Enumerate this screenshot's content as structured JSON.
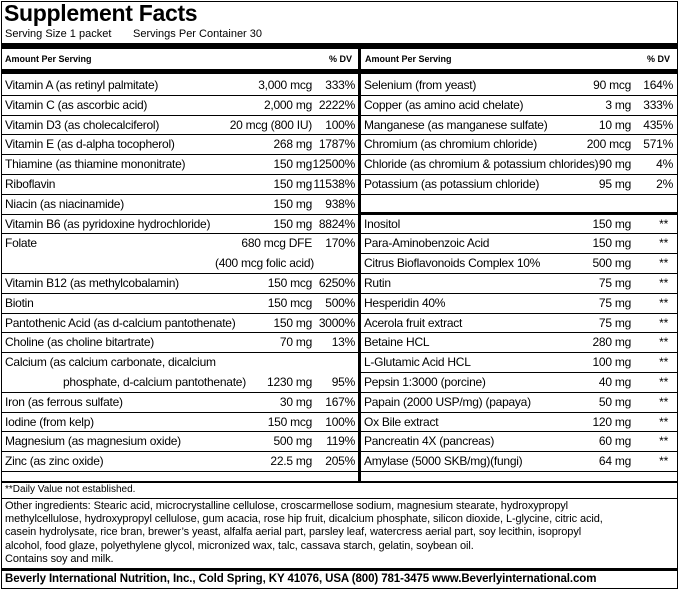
{
  "title": "Supplement Facts",
  "serving_size": "Serving Size 1 packet",
  "servings_per_container": "Servings Per Container 30",
  "left": {
    "header": [
      "Amount Per Serving",
      "% DV"
    ],
    "rows": [
      {
        "name": "Vitamin A (as retinyl palmitate)",
        "amount": "3,000 mcg",
        "dv": "333%"
      },
      {
        "name": "Vitamin C (as ascorbic acid)",
        "amount": "2,000 mg",
        "dv": "2222%"
      },
      {
        "name": "Vitamin D3 (as cholecalciferol)",
        "amount": "20 mcg (800 IU)",
        "dv": "100%"
      },
      {
        "name": "Vitamin E (as d-alpha tocopherol)",
        "amount": "268 mg",
        "dv": "1787%"
      },
      {
        "name": "Thiamine (as thiamine mononitrate)",
        "amount": "150 mg",
        "dv": "12500%"
      },
      {
        "name": "Riboflavin",
        "amount": "150 mg",
        "dv": "11538%"
      },
      {
        "name": "Niacin (as niacinamide)",
        "amount": "150 mg",
        "dv": "938%"
      },
      {
        "name": "Vitamin B6 (as pyridoxine hydrochloride)",
        "amount": "150 mg",
        "dv": "8824%"
      },
      {
        "name": "Folate",
        "amount": "680 mcg DFE",
        "dv": "170%",
        "amount_note": "(400 mcg folic acid)"
      },
      {
        "name": "Vitamin B12 (as methylcobalamin)",
        "amount": "150 mcg",
        "dv": "6250%"
      },
      {
        "name": "Biotin",
        "amount": "150 mcg",
        "dv": "500%"
      },
      {
        "name": "Pantothenic Acid (as d-calcium pantothenate)",
        "amount": "150 mg",
        "dv": "3000%"
      },
      {
        "name": "Choline (as choline bitartrate)",
        "amount": "70 mg",
        "dv": "13%"
      },
      {
        "name": "Calcium (as calcium carbonate, dicalcium",
        "name_cont": "phosphate, d-calcium pantothenate)",
        "amount": "1230 mg",
        "dv": "95%"
      },
      {
        "name": "Iron (as ferrous sulfate)",
        "amount": "30 mg",
        "dv": "167%"
      },
      {
        "name": "Iodine (from kelp)",
        "amount": "150 mcg",
        "dv": "100%"
      },
      {
        "name": "Magnesium (as magnesium oxide)",
        "amount": "500 mg",
        "dv": "119%"
      },
      {
        "name": "Zinc (as zinc oxide)",
        "amount": "22.5 mg",
        "dv": "205%"
      }
    ]
  },
  "right": {
    "header": [
      "Amount Per Serving",
      "% DV"
    ],
    "rows": [
      {
        "name": "Selenium (from yeast)",
        "amount": "90 mcg",
        "dv": "164%"
      },
      {
        "name": "Copper (as amino acid chelate)",
        "amount": "3 mg",
        "dv": "333%"
      },
      {
        "name": "Manganese (as manganese sulfate)",
        "amount": "10 mg",
        "dv": "435%"
      },
      {
        "name": "Chromium (as chromium chloride)",
        "amount": "200 mcg",
        "dv": "571%"
      },
      {
        "name": "Chloride (as chromium & potassium chlorides)",
        "amount": "90 mg",
        "dv": "4%"
      },
      {
        "name": "Potassium (as potassium chloride)",
        "amount": "95 mg",
        "dv": "2%"
      }
    ],
    "rows2": [
      {
        "name": "Inositol",
        "amount": "150 mg",
        "dv": "**"
      },
      {
        "name": "Para-Aminobenzoic Acid",
        "amount": "150 mg",
        "dv": "**"
      },
      {
        "name": "Citrus Bioflavonoids Complex 10%",
        "amount": "500 mg",
        "dv": "**"
      },
      {
        "name": "Rutin",
        "amount": "75 mg",
        "dv": "**"
      },
      {
        "name": "Hesperidin 40%",
        "amount": "75 mg",
        "dv": "**"
      },
      {
        "name": "Acerola fruit extract",
        "amount": "75 mg",
        "dv": "**"
      },
      {
        "name": "Betaine HCL",
        "amount": "280 mg",
        "dv": "**"
      },
      {
        "name": "L-Glutamic Acid HCL",
        "amount": "100 mg",
        "dv": "**"
      },
      {
        "name": "Pepsin 1:3000 (porcine)",
        "amount": "40 mg",
        "dv": "**"
      },
      {
        "name": "Papain (2000 USP/mg) (papaya)",
        "amount": "50 mg",
        "dv": "**"
      },
      {
        "name": "Ox Bile extract",
        "amount": "120 mg",
        "dv": "**"
      },
      {
        "name": "Pancreatin 4X (pancreas)",
        "amount": "60 mg",
        "dv": "**"
      },
      {
        "name": "Amylase (5000 SKB/mg)(fungi)",
        "amount": "64 mg",
        "dv": "**"
      }
    ]
  },
  "footnote": "**Daily Value not established.",
  "other_ingredients": [
    "Other ingredients: Stearic acid, microcrystalline cellulose, croscarmellose sodium, magnesium stearate, hydroxypropyl",
    "methylcellulose, hydroxypropyl cellulose, gum acacia, rose hip fruit, dicalcium phosphate, silicon dioxide, L-glycine, citric acid,",
    "casein hydrolysate, rice bran, brewer’s yeast, alfalfa aerial part, parsley leaf, watercress aerial part, soy  lecithin, isopropyl",
    "alcohol, food glaze, polyethylene glycol, micronized wax, talc, cassava starch, gelatin, soybean oil.",
    "Contains soy and milk."
  ],
  "footer": "Beverly International Nutrition, Inc., Cold Spring, KY 41076, USA  (800) 781-3475 www.Beverlyinternational.com"
}
